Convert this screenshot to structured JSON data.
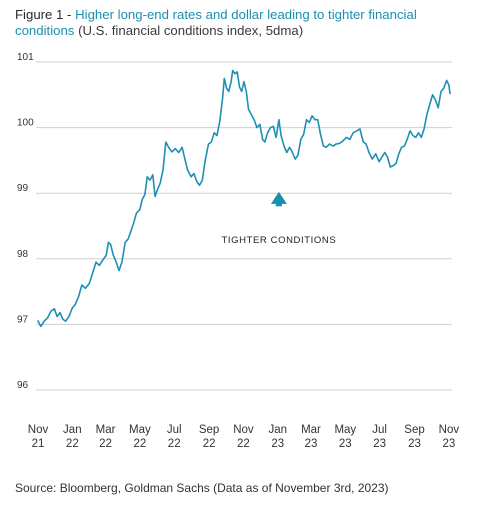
{
  "figure": {
    "label": "Figure 1",
    "separator": " - ",
    "title": "Higher long-end rates and dollar leading to tighter financial conditions",
    "subtitle": "(U.S. financial conditions index, 5dma)"
  },
  "source": "Source: Bloomberg, Goldman Sachs (Data as of November 3rd, 2023)",
  "colors": {
    "line": "#1f8fb3",
    "arrow": "#1a8fb0",
    "grid": "#cfcfcf",
    "title_accent": "#1a8fb0"
  },
  "chart_data": {
    "type": "line",
    "ylim": [
      96,
      101
    ],
    "yticks": [
      {
        "value": 101,
        "label": "101"
      },
      {
        "value": 100,
        "label": "100"
      },
      {
        "value": 99,
        "label": "99"
      },
      {
        "value": 98,
        "label": "98"
      },
      {
        "value": 97,
        "label": "97"
      },
      {
        "value": 96,
        "label": "96"
      }
    ],
    "grid": true,
    "xlim": [
      "2021-11-01",
      "2023-11-03"
    ],
    "xticks": [
      {
        "date": "2021-11-01",
        "month": "Nov",
        "year": "21"
      },
      {
        "date": "2022-01-01",
        "month": "Jan",
        "year": "22"
      },
      {
        "date": "2022-03-01",
        "month": "Mar",
        "year": "22"
      },
      {
        "date": "2022-05-01",
        "month": "May",
        "year": "22"
      },
      {
        "date": "2022-07-01",
        "month": "Jul",
        "year": "22"
      },
      {
        "date": "2022-09-01",
        "month": "Sep",
        "year": "22"
      },
      {
        "date": "2022-11-01",
        "month": "Nov",
        "year": "22"
      },
      {
        "date": "2023-01-01",
        "month": "Jan",
        "year": "23"
      },
      {
        "date": "2023-03-01",
        "month": "Mar",
        "year": "23"
      },
      {
        "date": "2023-05-01",
        "month": "May",
        "year": "23"
      },
      {
        "date": "2023-07-01",
        "month": "Jul",
        "year": "23"
      },
      {
        "date": "2023-09-01",
        "month": "Sep",
        "year": "23"
      },
      {
        "date": "2023-11-01",
        "month": "Nov",
        "year": "23"
      }
    ],
    "annotation": {
      "text": "TIGHTER CONDITIONS",
      "date": "2023-01-03",
      "arrow_from": 98.8,
      "arrow_to": 99.02,
      "text_value": 98.3
    },
    "series": [
      {
        "values": [
          {
            "x": "2021-11-01",
            "y": 97.05
          },
          {
            "x": "2021-11-06",
            "y": 96.97
          },
          {
            "x": "2021-11-12",
            "y": 97.05
          },
          {
            "x": "2021-11-18",
            "y": 97.1
          },
          {
            "x": "2021-11-24",
            "y": 97.2
          },
          {
            "x": "2021-11-30",
            "y": 97.24
          },
          {
            "x": "2021-12-05",
            "y": 97.12
          },
          {
            "x": "2021-12-10",
            "y": 97.18
          },
          {
            "x": "2021-12-15",
            "y": 97.08
          },
          {
            "x": "2021-12-20",
            "y": 97.05
          },
          {
            "x": "2021-12-26",
            "y": 97.12
          },
          {
            "x": "2022-01-01",
            "y": 97.25
          },
          {
            "x": "2022-01-06",
            "y": 97.3
          },
          {
            "x": "2022-01-12",
            "y": 97.42
          },
          {
            "x": "2022-01-18",
            "y": 97.6
          },
          {
            "x": "2022-01-24",
            "y": 97.55
          },
          {
            "x": "2022-01-31",
            "y": 97.62
          },
          {
            "x": "2022-02-06",
            "y": 97.78
          },
          {
            "x": "2022-02-12",
            "y": 97.95
          },
          {
            "x": "2022-02-18",
            "y": 97.9
          },
          {
            "x": "2022-02-24",
            "y": 97.98
          },
          {
            "x": "2022-03-02",
            "y": 98.05
          },
          {
            "x": "2022-03-06",
            "y": 98.25
          },
          {
            "x": "2022-03-10",
            "y": 98.22
          },
          {
            "x": "2022-03-15",
            "y": 98.05
          },
          {
            "x": "2022-03-20",
            "y": 97.95
          },
          {
            "x": "2022-03-25",
            "y": 97.82
          },
          {
            "x": "2022-03-30",
            "y": 97.95
          },
          {
            "x": "2022-04-05",
            "y": 98.25
          },
          {
            "x": "2022-04-10",
            "y": 98.3
          },
          {
            "x": "2022-04-15",
            "y": 98.42
          },
          {
            "x": "2022-04-20",
            "y": 98.55
          },
          {
            "x": "2022-04-25",
            "y": 98.7
          },
          {
            "x": "2022-05-01",
            "y": 98.75
          },
          {
            "x": "2022-05-05",
            "y": 98.9
          },
          {
            "x": "2022-05-10",
            "y": 98.98
          },
          {
            "x": "2022-05-14",
            "y": 99.25
          },
          {
            "x": "2022-05-19",
            "y": 99.2
          },
          {
            "x": "2022-05-24",
            "y": 99.28
          },
          {
            "x": "2022-05-28",
            "y": 98.95
          },
          {
            "x": "2022-06-01",
            "y": 99.05
          },
          {
            "x": "2022-06-06",
            "y": 99.15
          },
          {
            "x": "2022-06-11",
            "y": 99.35
          },
          {
            "x": "2022-06-16",
            "y": 99.78
          },
          {
            "x": "2022-06-21",
            "y": 99.7
          },
          {
            "x": "2022-06-27",
            "y": 99.63
          },
          {
            "x": "2022-07-03",
            "y": 99.68
          },
          {
            "x": "2022-07-09",
            "y": 99.62
          },
          {
            "x": "2022-07-15",
            "y": 99.7
          },
          {
            "x": "2022-07-20",
            "y": 99.52
          },
          {
            "x": "2022-07-25",
            "y": 99.35
          },
          {
            "x": "2022-07-31",
            "y": 99.25
          },
          {
            "x": "2022-08-05",
            "y": 99.3
          },
          {
            "x": "2022-08-10",
            "y": 99.18
          },
          {
            "x": "2022-08-15",
            "y": 99.12
          },
          {
            "x": "2022-08-20",
            "y": 99.2
          },
          {
            "x": "2022-08-25",
            "y": 99.5
          },
          {
            "x": "2022-08-31",
            "y": 99.75
          },
          {
            "x": "2022-09-05",
            "y": 99.78
          },
          {
            "x": "2022-09-10",
            "y": 99.92
          },
          {
            "x": "2022-09-15",
            "y": 99.88
          },
          {
            "x": "2022-09-20",
            "y": 100.1
          },
          {
            "x": "2022-09-25",
            "y": 100.45
          },
          {
            "x": "2022-09-28",
            "y": 100.75
          },
          {
            "x": "2022-10-02",
            "y": 100.6
          },
          {
            "x": "2022-10-06",
            "y": 100.55
          },
          {
            "x": "2022-10-10",
            "y": 100.7
          },
          {
            "x": "2022-10-13",
            "y": 100.87
          },
          {
            "x": "2022-10-17",
            "y": 100.82
          },
          {
            "x": "2022-10-21",
            "y": 100.85
          },
          {
            "x": "2022-10-25",
            "y": 100.62
          },
          {
            "x": "2022-10-29",
            "y": 100.55
          },
          {
            "x": "2022-11-02",
            "y": 100.7
          },
          {
            "x": "2022-11-06",
            "y": 100.55
          },
          {
            "x": "2022-11-10",
            "y": 100.28
          },
          {
            "x": "2022-11-15",
            "y": 100.2
          },
          {
            "x": "2022-11-20",
            "y": 100.12
          },
          {
            "x": "2022-11-25",
            "y": 100.0
          },
          {
            "x": "2022-11-30",
            "y": 100.05
          },
          {
            "x": "2022-12-05",
            "y": 99.82
          },
          {
            "x": "2022-12-09",
            "y": 99.78
          },
          {
            "x": "2022-12-14",
            "y": 99.92
          },
          {
            "x": "2022-12-19",
            "y": 100.0
          },
          {
            "x": "2022-12-24",
            "y": 100.02
          },
          {
            "x": "2022-12-29",
            "y": 99.85
          },
          {
            "x": "2023-01-03",
            "y": 100.12
          },
          {
            "x": "2023-01-07",
            "y": 99.88
          },
          {
            "x": "2023-01-12",
            "y": 99.72
          },
          {
            "x": "2023-01-17",
            "y": 99.62
          },
          {
            "x": "2023-01-22",
            "y": 99.7
          },
          {
            "x": "2023-01-27",
            "y": 99.62
          },
          {
            "x": "2023-02-01",
            "y": 99.52
          },
          {
            "x": "2023-02-06",
            "y": 99.58
          },
          {
            "x": "2023-02-11",
            "y": 99.82
          },
          {
            "x": "2023-02-16",
            "y": 99.9
          },
          {
            "x": "2023-02-21",
            "y": 100.12
          },
          {
            "x": "2023-02-26",
            "y": 100.08
          },
          {
            "x": "2023-03-03",
            "y": 100.18
          },
          {
            "x": "2023-03-08",
            "y": 100.12
          },
          {
            "x": "2023-03-13",
            "y": 100.12
          },
          {
            "x": "2023-03-18",
            "y": 99.9
          },
          {
            "x": "2023-03-23",
            "y": 99.72
          },
          {
            "x": "2023-03-28",
            "y": 99.7
          },
          {
            "x": "2023-04-03",
            "y": 99.75
          },
          {
            "x": "2023-04-09",
            "y": 99.72
          },
          {
            "x": "2023-04-15",
            "y": 99.75
          },
          {
            "x": "2023-04-21",
            "y": 99.76
          },
          {
            "x": "2023-04-27",
            "y": 99.8
          },
          {
            "x": "2023-05-03",
            "y": 99.85
          },
          {
            "x": "2023-05-09",
            "y": 99.82
          },
          {
            "x": "2023-05-15",
            "y": 99.92
          },
          {
            "x": "2023-05-21",
            "y": 99.95
          },
          {
            "x": "2023-05-27",
            "y": 99.98
          },
          {
            "x": "2023-06-02",
            "y": 99.78
          },
          {
            "x": "2023-06-07",
            "y": 99.75
          },
          {
            "x": "2023-06-12",
            "y": 99.62
          },
          {
            "x": "2023-06-18",
            "y": 99.52
          },
          {
            "x": "2023-06-24",
            "y": 99.6
          },
          {
            "x": "2023-06-30",
            "y": 99.48
          },
          {
            "x": "2023-07-05",
            "y": 99.55
          },
          {
            "x": "2023-07-10",
            "y": 99.62
          },
          {
            "x": "2023-07-15",
            "y": 99.55
          },
          {
            "x": "2023-07-20",
            "y": 99.4
          },
          {
            "x": "2023-07-25",
            "y": 99.42
          },
          {
            "x": "2023-07-30",
            "y": 99.45
          },
          {
            "x": "2023-08-04",
            "y": 99.6
          },
          {
            "x": "2023-08-09",
            "y": 99.7
          },
          {
            "x": "2023-08-14",
            "y": 99.72
          },
          {
            "x": "2023-08-19",
            "y": 99.82
          },
          {
            "x": "2023-08-24",
            "y": 99.95
          },
          {
            "x": "2023-08-29",
            "y": 99.88
          },
          {
            "x": "2023-09-03",
            "y": 99.85
          },
          {
            "x": "2023-09-08",
            "y": 99.92
          },
          {
            "x": "2023-09-13",
            "y": 99.85
          },
          {
            "x": "2023-09-18",
            "y": 99.98
          },
          {
            "x": "2023-09-23",
            "y": 100.2
          },
          {
            "x": "2023-09-28",
            "y": 100.35
          },
          {
            "x": "2023-10-03",
            "y": 100.5
          },
          {
            "x": "2023-10-08",
            "y": 100.42
          },
          {
            "x": "2023-10-13",
            "y": 100.3
          },
          {
            "x": "2023-10-18",
            "y": 100.55
          },
          {
            "x": "2023-10-23",
            "y": 100.6
          },
          {
            "x": "2023-10-28",
            "y": 100.72
          },
          {
            "x": "2023-11-01",
            "y": 100.65
          },
          {
            "x": "2023-11-03",
            "y": 100.52
          }
        ]
      }
    ]
  }
}
